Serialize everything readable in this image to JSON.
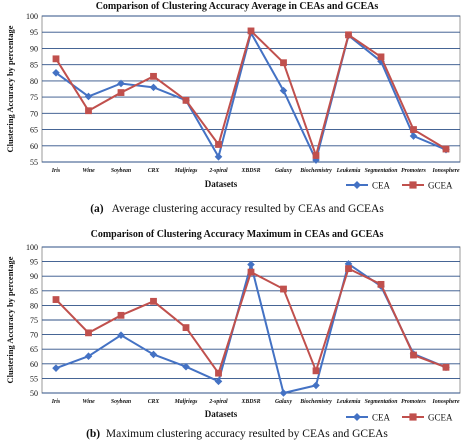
{
  "chart_data": [
    {
      "type": "line",
      "title": "Comparison of Clustering Accuracy Average in CEAs and GCEAs",
      "xlabel": "Datasets",
      "ylabel": "Clustering Accuracy by percentage",
      "ylim": [
        55,
        100
      ],
      "yticks": [
        55,
        60,
        65,
        70,
        75,
        80,
        85,
        90,
        95,
        100
      ],
      "grid": true,
      "legend_position": "bottom-right",
      "categories": [
        "Iris",
        "Wine",
        "Soybean",
        "CRX",
        "Maljriegs",
        "2-spiral",
        "XBDSR",
        "Galaxy",
        "Biochemistry",
        "Leukemia",
        "Segmentation",
        "Promoters",
        "Ionosphere"
      ],
      "series": [
        {
          "name": "CEA",
          "color": "#4472c4",
          "marker": "diamond",
          "values": [
            82.5,
            75.2,
            79.2,
            78.0,
            74.0,
            56.6,
            94.8,
            77.0,
            55.6,
            94.0,
            86.0,
            63.0,
            58.8
          ]
        },
        {
          "name": "GCEA",
          "color": "#c0504d",
          "marker": "square",
          "values": [
            86.8,
            70.8,
            76.4,
            81.4,
            74.0,
            60.4,
            95.4,
            85.6,
            57.0,
            94.2,
            87.4,
            65.0,
            59.0
          ]
        }
      ],
      "caption_label": "(a)",
      "caption_text": "Average clustering accuracy resulted by CEAs and GCEAs"
    },
    {
      "type": "line",
      "title": "Comparison of Clustering Accuracy Maximum in CEAs and GCEAs",
      "xlabel": "Datasets",
      "ylabel": "Clustering Accuracy by percentage",
      "ylim": [
        50,
        100
      ],
      "yticks": [
        50,
        55,
        60,
        65,
        70,
        75,
        80,
        85,
        90,
        95,
        100
      ],
      "grid": true,
      "legend_position": "bottom-right",
      "categories": [
        "Iris",
        "Wine",
        "Soybean",
        "CRX",
        "Maljriegs",
        "2-spiral",
        "XBDSR",
        "Galaxy",
        "Biochemistry",
        "Leukemia",
        "Segmentation",
        "Promoters",
        "Ionosphere"
      ],
      "series": [
        {
          "name": "CEA",
          "color": "#4472c4",
          "marker": "diamond",
          "values": [
            58.5,
            62.6,
            69.8,
            63.2,
            59.0,
            54.0,
            94.0,
            50.0,
            52.6,
            94.2,
            86.6,
            63.4,
            58.8
          ]
        },
        {
          "name": "GCEA",
          "color": "#c0504d",
          "marker": "square",
          "values": [
            82.0,
            70.6,
            76.6,
            81.4,
            72.4,
            56.8,
            91.4,
            85.6,
            57.6,
            92.6,
            87.2,
            63.0,
            58.8
          ]
        }
      ],
      "caption_label": "(b)",
      "caption_text": "Maximum clustering accuracy resulted by CEAs and GCEAs"
    }
  ]
}
